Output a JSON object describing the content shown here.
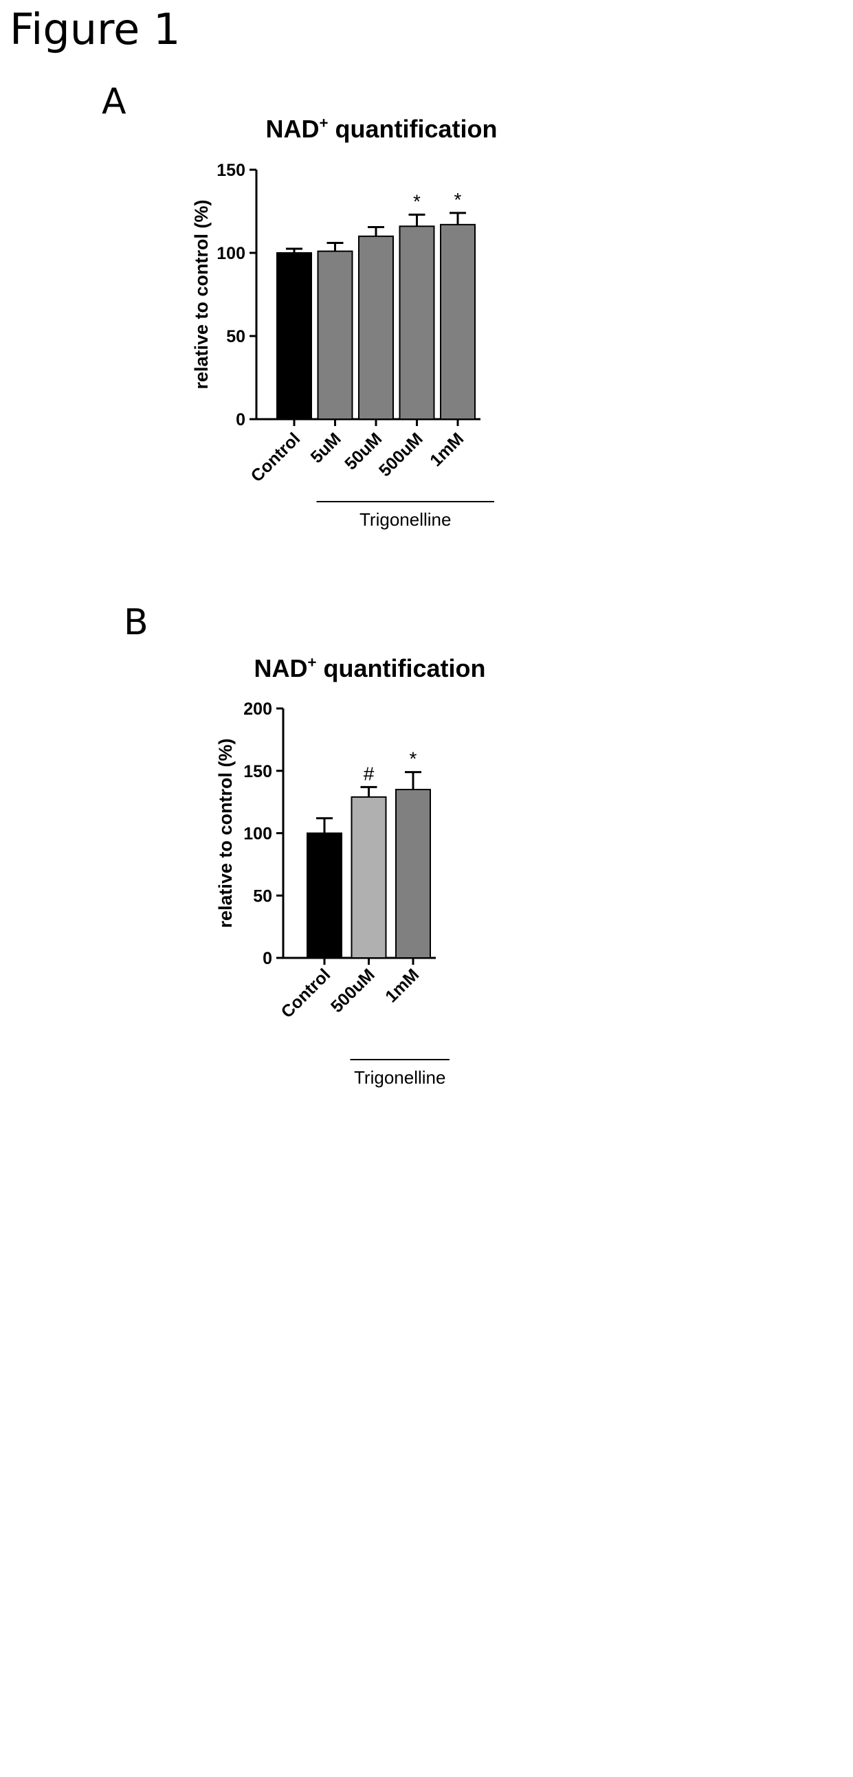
{
  "figure_title": "Figure 1",
  "chart_data": [
    {
      "panel": "A",
      "type": "bar",
      "title": "NAD",
      "title_sup": "+",
      "title_rest": " quantification",
      "ylabel": "relative to control (%)",
      "ylim": [
        0,
        150
      ],
      "yticks": [
        0,
        50,
        100,
        150
      ],
      "categories": [
        "Control",
        "5uM",
        "50uM",
        "500uM",
        "1mM"
      ],
      "values": [
        100,
        101,
        110,
        116,
        117
      ],
      "error_upper": [
        102.5,
        106,
        115.5,
        123,
        124
      ],
      "significance": [
        "",
        "",
        "",
        "*",
        "*"
      ],
      "bar_colors": [
        "#000000",
        "#808080",
        "#808080",
        "#808080",
        "#808080"
      ],
      "group_label": "Trigonelline",
      "group_members": [
        "5uM",
        "50uM",
        "500uM",
        "1mM"
      ]
    },
    {
      "panel": "B",
      "type": "bar",
      "title": "NAD",
      "title_sup": "+",
      "title_rest": " quantification",
      "ylabel": "relative to control (%)",
      "ylim": [
        0,
        200
      ],
      "yticks": [
        0,
        50,
        100,
        150,
        200
      ],
      "categories": [
        "Control",
        "500uM",
        "1mM"
      ],
      "values": [
        100,
        129,
        135
      ],
      "error_upper": [
        112,
        137,
        149
      ],
      "significance": [
        "",
        "#",
        "*"
      ],
      "bar_colors": [
        "#000000",
        "#b0b0b0",
        "#808080"
      ],
      "group_label": "Trigonelline",
      "group_members": [
        "500uM",
        "1mM"
      ]
    }
  ]
}
